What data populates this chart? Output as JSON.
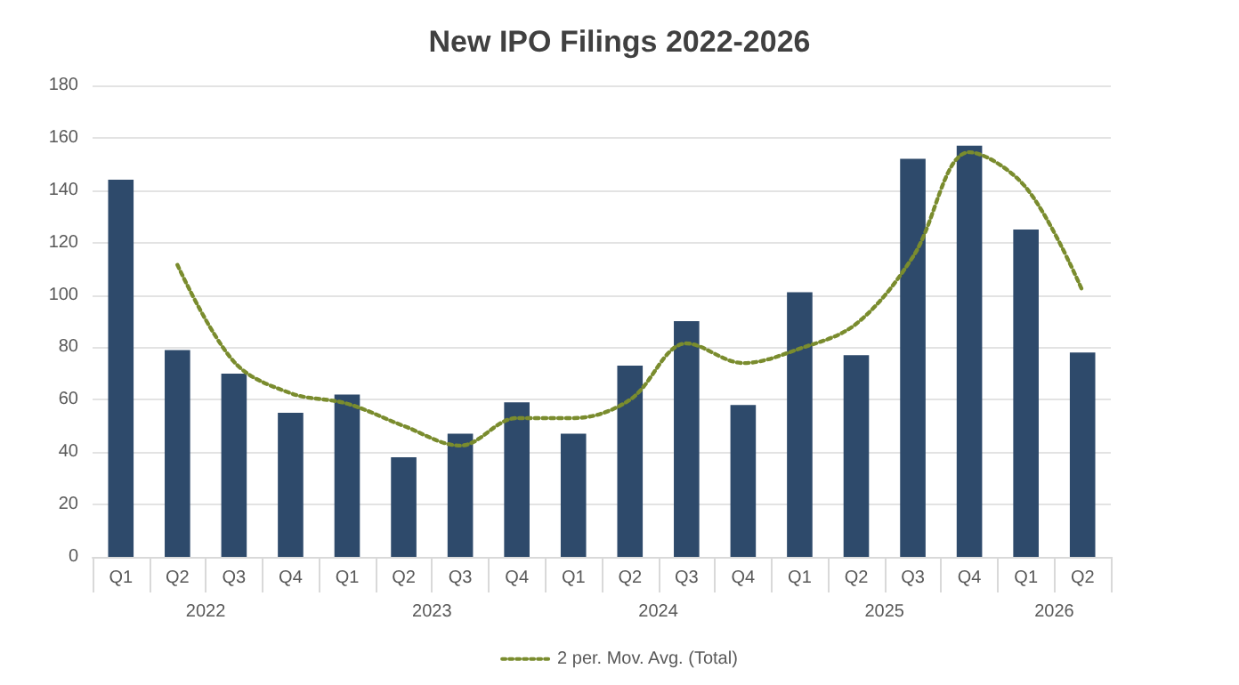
{
  "chart_data": {
    "type": "bar",
    "title": "New IPO Filings 2022-2026",
    "categories": [
      "Q1",
      "Q2",
      "Q3",
      "Q4",
      "Q1",
      "Q2",
      "Q3",
      "Q4",
      "Q1",
      "Q2",
      "Q3",
      "Q4",
      "Q1",
      "Q2",
      "Q3",
      "Q4",
      "Q1",
      "Q2"
    ],
    "series": [
      {
        "color": "#2e4a6b",
        "values": [
          144,
          79,
          70,
          55,
          62,
          38,
          47,
          59,
          47,
          73,
          90,
          58,
          101,
          77,
          152,
          157,
          125,
          78
        ]
      },
      {
        "type": "line",
        "name": "2 per. Mov. Avg. (Total)",
        "color": "#7a8c2e",
        "line_style": "dotted",
        "values": [
          null,
          111.5,
          74.5,
          62.5,
          58.5,
          50,
          42.5,
          53,
          53,
          60,
          81.5,
          74,
          79.5,
          89,
          114.5,
          154.5,
          141,
          101.5
        ]
      }
    ],
    "annotations": [
      "2022",
      "2023",
      "2024",
      "2025",
      "2026"
    ],
    "ylim": [
      0,
      180
    ],
    "yticks": [
      0,
      20,
      40,
      60,
      80,
      100,
      120,
      140,
      160,
      180
    ],
    "grid": "y",
    "legend": "bottom"
  }
}
